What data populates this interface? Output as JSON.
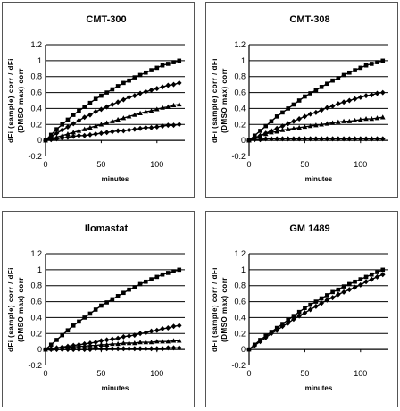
{
  "chart_data": [
    {
      "type": "line",
      "title": "CMT-300",
      "xlabel": "minutes",
      "ylabel": [
        "dFi (sample) corr / dFi",
        "(DMSO max) corr"
      ],
      "xlim": [
        0,
        125
      ],
      "ylim": [
        -0.2,
        1.2
      ],
      "xticks": [
        "0",
        "50",
        "100"
      ],
      "yticks": [
        "-0.2",
        "0",
        "0.2",
        "0.4",
        "0.6",
        "0.8",
        "1",
        "1.2"
      ],
      "grid": true,
      "x": [
        0,
        5,
        10,
        15,
        20,
        25,
        30,
        35,
        40,
        45,
        50,
        55,
        60,
        65,
        70,
        75,
        80,
        85,
        90,
        95,
        100,
        105,
        110,
        115,
        120
      ],
      "series": [
        {
          "marker": "square",
          "values": [
            0,
            0.07,
            0.14,
            0.2,
            0.26,
            0.32,
            0.37,
            0.42,
            0.47,
            0.52,
            0.56,
            0.6,
            0.64,
            0.68,
            0.72,
            0.75,
            0.79,
            0.82,
            0.85,
            0.88,
            0.91,
            0.94,
            0.96,
            0.98,
            1.0
          ]
        },
        {
          "marker": "diamond",
          "values": [
            0,
            0.04,
            0.09,
            0.13,
            0.17,
            0.21,
            0.25,
            0.29,
            0.32,
            0.36,
            0.39,
            0.42,
            0.45,
            0.48,
            0.51,
            0.54,
            0.56,
            0.59,
            0.61,
            0.63,
            0.65,
            0.67,
            0.69,
            0.7,
            0.72
          ]
        },
        {
          "marker": "triangle",
          "values": [
            0,
            0.02,
            0.04,
            0.06,
            0.08,
            0.1,
            0.12,
            0.14,
            0.16,
            0.18,
            0.2,
            0.22,
            0.24,
            0.26,
            0.28,
            0.3,
            0.32,
            0.34,
            0.36,
            0.37,
            0.39,
            0.41,
            0.42,
            0.44,
            0.45
          ]
        },
        {
          "marker": "diamond",
          "values": [
            0,
            0.01,
            0.02,
            0.03,
            0.04,
            0.05,
            0.06,
            0.06,
            0.07,
            0.08,
            0.09,
            0.1,
            0.11,
            0.12,
            0.12,
            0.13,
            0.14,
            0.15,
            0.16,
            0.16,
            0.17,
            0.18,
            0.19,
            0.19,
            0.2
          ]
        }
      ]
    },
    {
      "type": "line",
      "title": "CMT-308",
      "xlabel": "minutes",
      "ylabel": [
        "dFi (sample) corr / dFi",
        "(DMSO max) corr"
      ],
      "xlim": [
        0,
        125
      ],
      "ylim": [
        -0.2,
        1.2
      ],
      "xticks": [
        "0",
        "50",
        "100"
      ],
      "yticks": [
        "-0.2",
        "0",
        "0.2",
        "0.4",
        "0.6",
        "0.8",
        "1",
        "1.2"
      ],
      "grid": true,
      "x": [
        0,
        5,
        10,
        15,
        20,
        25,
        30,
        35,
        40,
        45,
        50,
        55,
        60,
        65,
        70,
        75,
        80,
        85,
        90,
        95,
        100,
        105,
        110,
        115,
        120
      ],
      "series": [
        {
          "marker": "square",
          "values": [
            0,
            0.06,
            0.12,
            0.18,
            0.24,
            0.3,
            0.35,
            0.4,
            0.45,
            0.5,
            0.55,
            0.59,
            0.63,
            0.67,
            0.71,
            0.75,
            0.78,
            0.82,
            0.85,
            0.88,
            0.91,
            0.94,
            0.96,
            0.98,
            1.0
          ]
        },
        {
          "marker": "diamond",
          "values": [
            0,
            0.03,
            0.06,
            0.09,
            0.12,
            0.15,
            0.18,
            0.21,
            0.24,
            0.27,
            0.3,
            0.33,
            0.35,
            0.38,
            0.41,
            0.43,
            0.46,
            0.48,
            0.5,
            0.52,
            0.54,
            0.56,
            0.57,
            0.59,
            0.6
          ]
        },
        {
          "marker": "triangle",
          "values": [
            0,
            0.03,
            0.06,
            0.08,
            0.1,
            0.11,
            0.13,
            0.14,
            0.15,
            0.16,
            0.17,
            0.18,
            0.19,
            0.2,
            0.21,
            0.22,
            0.23,
            0.24,
            0.24,
            0.25,
            0.26,
            0.27,
            0.27,
            0.28,
            0.29
          ]
        },
        {
          "marker": "diamond",
          "values": [
            0,
            0.01,
            0.01,
            0.02,
            0.02,
            0.02,
            0.02,
            0.02,
            0.02,
            0.02,
            0.02,
            0.02,
            0.02,
            0.02,
            0.02,
            0.02,
            0.02,
            0.02,
            0.02,
            0.02,
            0.02,
            0.02,
            0.02,
            0.02,
            0.02
          ]
        }
      ]
    },
    {
      "type": "line",
      "title": "Ilomastat",
      "xlabel": "minutes",
      "ylabel": [
        "dFi (sample) corr / dFi",
        "(DMSO max) corr"
      ],
      "xlim": [
        0,
        125
      ],
      "ylim": [
        -0.2,
        1.2
      ],
      "xticks": [
        "0",
        "50",
        "100"
      ],
      "yticks": [
        "-0.2",
        "0",
        "0.2",
        "0.4",
        "0.6",
        "0.8",
        "1",
        "1.2"
      ],
      "grid": true,
      "x": [
        0,
        5,
        10,
        15,
        20,
        25,
        30,
        35,
        40,
        45,
        50,
        55,
        60,
        65,
        70,
        75,
        80,
        85,
        90,
        95,
        100,
        105,
        110,
        115,
        120
      ],
      "series": [
        {
          "marker": "square",
          "values": [
            0,
            0.06,
            0.12,
            0.18,
            0.24,
            0.3,
            0.35,
            0.4,
            0.45,
            0.5,
            0.55,
            0.59,
            0.63,
            0.67,
            0.71,
            0.75,
            0.78,
            0.82,
            0.85,
            0.88,
            0.91,
            0.94,
            0.96,
            0.98,
            1.0
          ]
        },
        {
          "marker": "diamond",
          "values": [
            0,
            0.01,
            0.02,
            0.03,
            0.04,
            0.05,
            0.06,
            0.07,
            0.08,
            0.09,
            0.11,
            0.12,
            0.13,
            0.14,
            0.16,
            0.17,
            0.18,
            0.2,
            0.21,
            0.23,
            0.24,
            0.26,
            0.27,
            0.29,
            0.3
          ]
        },
        {
          "marker": "triangle",
          "values": [
            0,
            0.01,
            0.02,
            0.02,
            0.03,
            0.03,
            0.04,
            0.04,
            0.05,
            0.05,
            0.06,
            0.06,
            0.07,
            0.07,
            0.08,
            0.08,
            0.08,
            0.09,
            0.09,
            0.09,
            0.1,
            0.1,
            0.1,
            0.11,
            0.11
          ]
        },
        {
          "marker": "diamond",
          "values": [
            0,
            0.0,
            0.0,
            0.0,
            0.0,
            0.0,
            0.0,
            0.0,
            0.0,
            0.01,
            0.01,
            0.01,
            0.01,
            0.01,
            0.01,
            0.01,
            0.01,
            0.01,
            0.01,
            0.01,
            0.01,
            0.01,
            0.02,
            0.02,
            0.02
          ]
        }
      ]
    },
    {
      "type": "line",
      "title": "GM 1489",
      "xlabel": "minutes",
      "ylabel": [
        "dFi (sample) corr / dFi",
        "(DMSO max) corr"
      ],
      "xlim": [
        0,
        125
      ],
      "ylim": [
        -0.2,
        1.2
      ],
      "xticks": [
        "0",
        "50",
        "100"
      ],
      "yticks": [
        "-0.2",
        "0",
        "0.2",
        "0.4",
        "0.6",
        "0.8",
        "1",
        "1.2"
      ],
      "grid": true,
      "x": [
        0,
        5,
        10,
        15,
        20,
        25,
        30,
        35,
        40,
        45,
        50,
        55,
        60,
        65,
        70,
        75,
        80,
        85,
        90,
        95,
        100,
        105,
        110,
        115,
        120
      ],
      "series": [
        {
          "marker": "square",
          "values": [
            0,
            0.06,
            0.12,
            0.17,
            0.22,
            0.27,
            0.32,
            0.37,
            0.42,
            0.47,
            0.52,
            0.56,
            0.6,
            0.64,
            0.68,
            0.72,
            0.75,
            0.79,
            0.82,
            0.85,
            0.88,
            0.91,
            0.94,
            0.97,
            1.0
          ]
        },
        {
          "marker": "diamond",
          "values": [
            0,
            0.05,
            0.1,
            0.15,
            0.2,
            0.24,
            0.29,
            0.33,
            0.38,
            0.42,
            0.46,
            0.5,
            0.54,
            0.58,
            0.62,
            0.65,
            0.69,
            0.72,
            0.75,
            0.78,
            0.81,
            0.85,
            0.88,
            0.91,
            0.94
          ]
        }
      ]
    }
  ]
}
